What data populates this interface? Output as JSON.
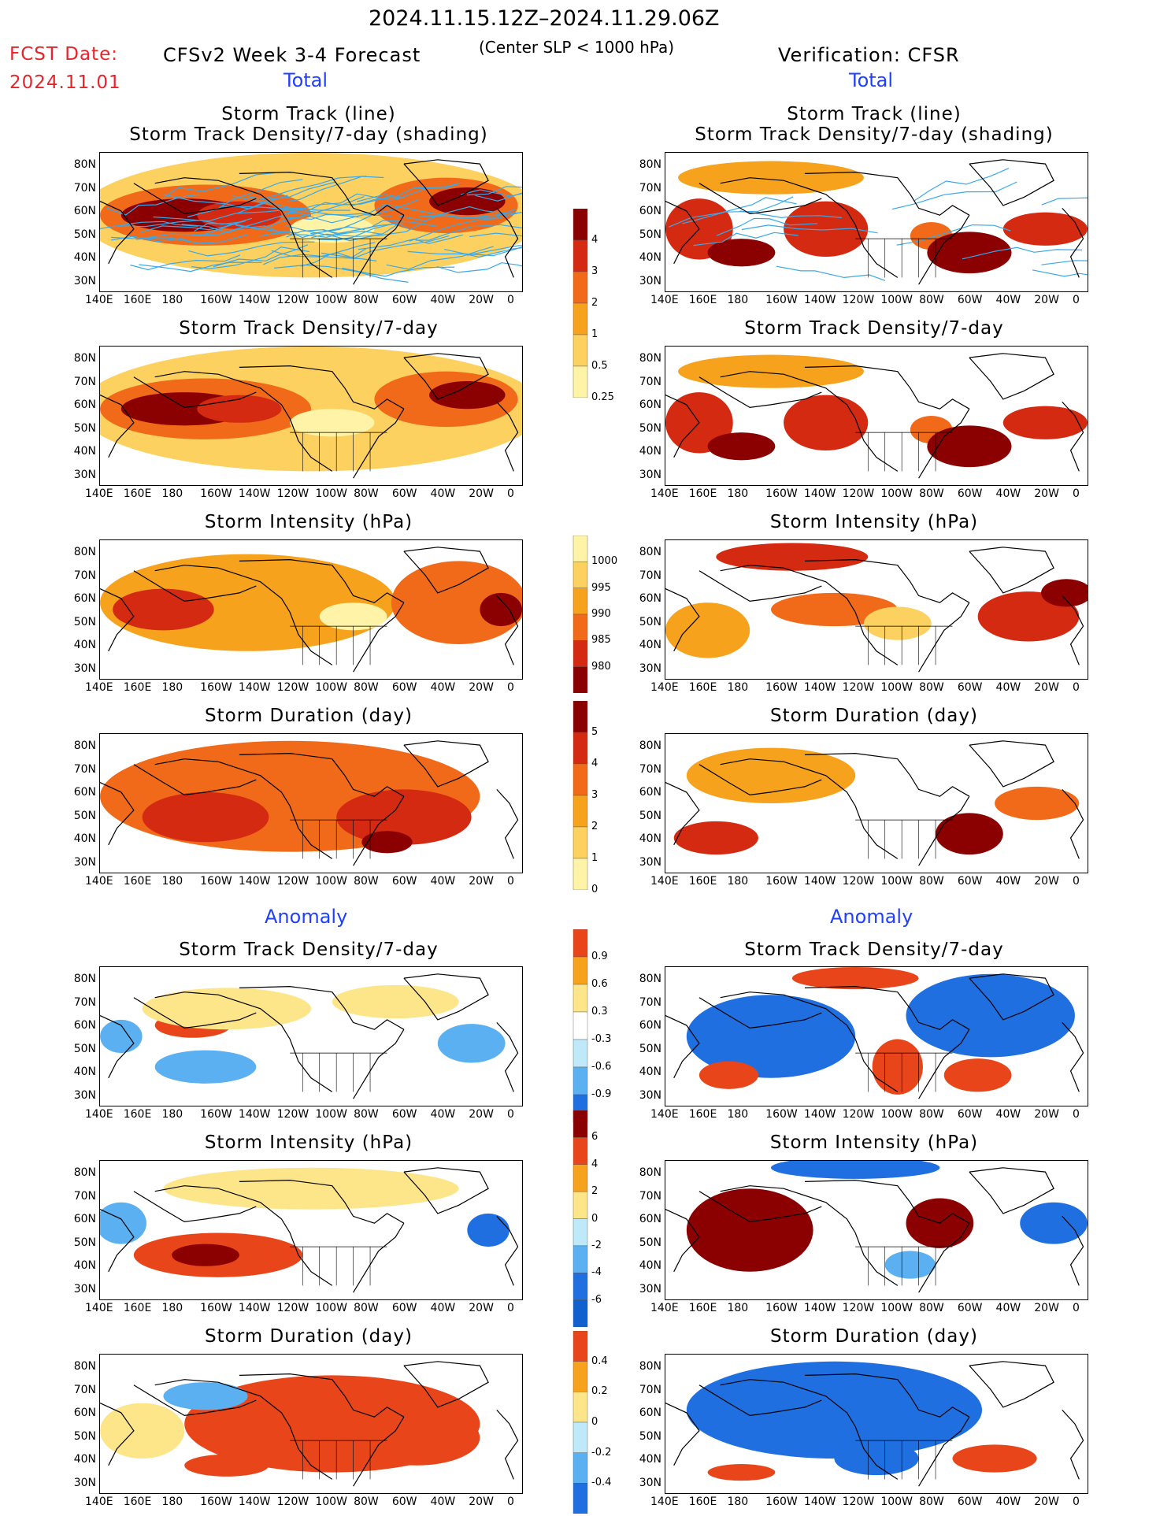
{
  "header": {
    "date_range": "2024.11.15.12Z–2024.11.29.06Z",
    "model_title": "CFSv2 Week 3-4 Forecast",
    "criterion": "(Center SLP < 1000 hPa)",
    "verification": "Verification: CFSR",
    "fcst_label": "FCST Date:",
    "fcst_date": "2024.11.01"
  },
  "sections": {
    "total": "Total",
    "anomaly": "Anomaly"
  },
  "titles": {
    "track_line": "Storm Track (line)",
    "track_density_shading": "Storm Track Density/7-day (shading)",
    "track_density": "Storm Track Density/7-day",
    "intensity": "Storm Intensity (hPa)",
    "duration": "Storm Duration (day)"
  },
  "axes": {
    "lat_labels": [
      "80N",
      "70N",
      "60N",
      "50N",
      "40N",
      "30N"
    ],
    "lon_labels": [
      "140E",
      "160E",
      "180",
      "160W",
      "140W",
      "120W",
      "100W",
      "80W",
      "60W",
      "40W",
      "20W",
      "0"
    ]
  },
  "colorbars": {
    "density": {
      "labels": [
        "4",
        "3",
        "2",
        "1",
        "0.5",
        "0.25"
      ],
      "colors": [
        "#8b0000",
        "#d42a12",
        "#f06a1a",
        "#f7a21d",
        "#fcd160",
        "#fff3a8"
      ]
    },
    "intensity": {
      "labels": [
        "1000",
        "995",
        "990",
        "985",
        "980"
      ],
      "colors": [
        "#fff3a8",
        "#fcd160",
        "#f7a21d",
        "#f06a1a",
        "#d42a12",
        "#8b0000"
      ]
    },
    "duration": {
      "labels": [
        "5",
        "4",
        "3",
        "2",
        "1",
        "0"
      ],
      "colors": [
        "#8b0000",
        "#d42a12",
        "#f06a1a",
        "#f7a21d",
        "#fcd160",
        "#fff3a8"
      ]
    },
    "anom_density": {
      "labels": [
        "0.9",
        "0.6",
        "0.3",
        "-0.3",
        "-0.6",
        "-0.9"
      ],
      "colors": [
        "#e8461a",
        "#f7a21d",
        "#fde58a",
        "#ffffff",
        "#bfe8f8",
        "#5ab0f0",
        "#1f6fe0"
      ]
    },
    "anom_intensity": {
      "labels": [
        "6",
        "4",
        "2",
        "0",
        "-2",
        "-4",
        "-6"
      ],
      "colors": [
        "#8b0000",
        "#e8461a",
        "#f7a21d",
        "#fde58a",
        "#bfe8f8",
        "#5ab0f0",
        "#1f6fe0",
        "#1060d0"
      ]
    },
    "anom_duration": {
      "labels": [
        "0.4",
        "0.2",
        "0",
        "-0.2",
        "-0.4"
      ],
      "colors": [
        "#e8461a",
        "#f7a21d",
        "#fde58a",
        "#bfe8f8",
        "#5ab0f0",
        "#1f6fe0"
      ]
    }
  }
}
